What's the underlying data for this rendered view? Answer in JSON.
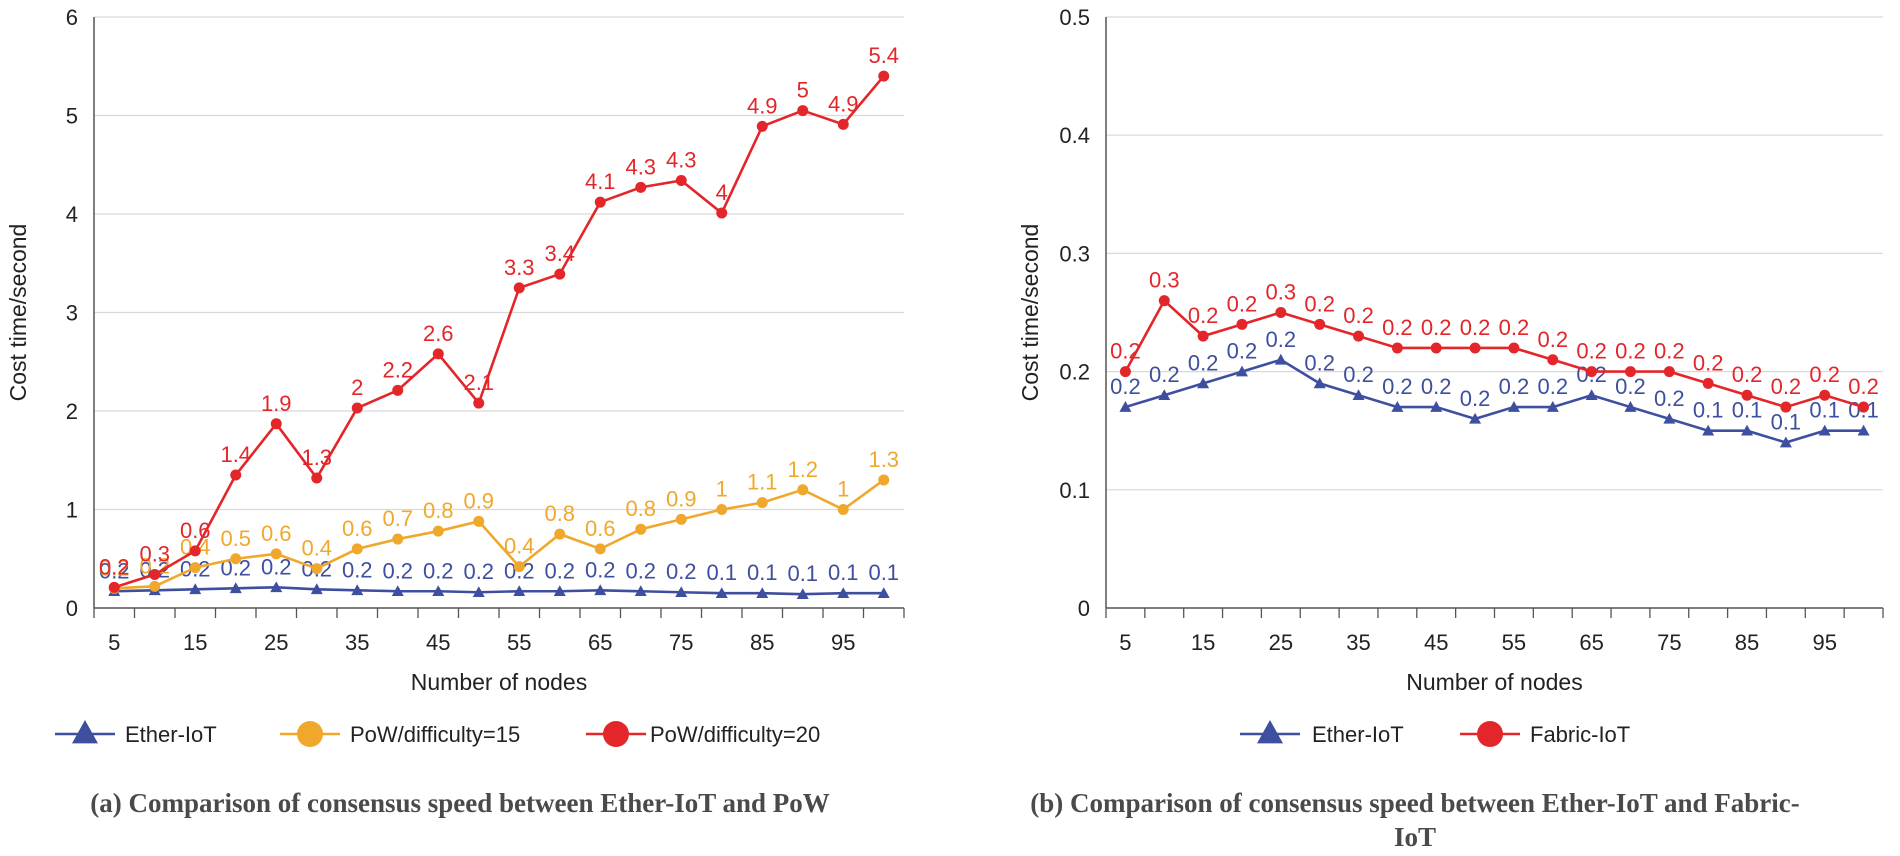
{
  "chart_data": [
    {
      "type": "line",
      "id": "a",
      "caption": "(a) Comparison of consensus speed between Ether-IoT and PoW",
      "xlabel": "Number of nodes",
      "ylabel": "Cost time/second",
      "x": [
        5,
        10,
        15,
        20,
        25,
        30,
        35,
        40,
        45,
        50,
        55,
        60,
        65,
        70,
        75,
        80,
        85,
        90,
        95,
        100
      ],
      "x_tick_labels": [
        "5",
        "15",
        "25",
        "35",
        "45",
        "55",
        "65",
        "75",
        "85",
        "95"
      ],
      "x_tick_values": [
        5,
        15,
        25,
        35,
        45,
        55,
        65,
        75,
        85,
        95
      ],
      "ylim": [
        0,
        6
      ],
      "y_ticks": [
        0,
        1,
        2,
        3,
        4,
        5,
        6
      ],
      "y_tick_labels": [
        "0",
        "1",
        "2",
        "3",
        "4",
        "5",
        "6"
      ],
      "grid": true,
      "legend_position": "bottom",
      "series": [
        {
          "name": "Ether-IoT",
          "color": "#3f4fa0",
          "marker": "triangle",
          "values": [
            0.17,
            0.18,
            0.19,
            0.2,
            0.21,
            0.19,
            0.18,
            0.17,
            0.17,
            0.16,
            0.17,
            0.17,
            0.18,
            0.17,
            0.16,
            0.15,
            0.15,
            0.14,
            0.15,
            0.15
          ],
          "labels": [
            "0.2",
            "0.2",
            "0.2",
            "0.2",
            "0.2",
            "0.2",
            "0.2",
            "0.2",
            "0.2",
            "0.2",
            "0.2",
            "0.2",
            "0.2",
            "0.2",
            "0.2",
            "0.1",
            "0.1",
            "0.1",
            "0.1",
            "0.1"
          ]
        },
        {
          "name": "PoW/difficulty=15",
          "color": "#f0a82c",
          "marker": "circle",
          "values": [
            0.2,
            0.22,
            0.41,
            0.5,
            0.55,
            0.4,
            0.6,
            0.7,
            0.78,
            0.88,
            0.42,
            0.75,
            0.6,
            0.8,
            0.9,
            1.0,
            1.07,
            1.2,
            1.0,
            1.3
          ],
          "labels": [
            "0.2",
            "0.2",
            "0.4",
            "0.5",
            "0.6",
            "0.4",
            "0.6",
            "0.7",
            "0.8",
            "0.9",
            "0.4",
            "0.8",
            "0.6",
            "0.8",
            "0.9",
            "1",
            "1.1",
            "1.2",
            "1",
            "1.3"
          ]
        },
        {
          "name": "PoW/difficulty=20",
          "color": "#e3262a",
          "marker": "circle",
          "values": [
            0.21,
            0.34,
            0.58,
            1.35,
            1.87,
            1.32,
            2.03,
            2.21,
            2.58,
            2.08,
            3.25,
            3.39,
            4.12,
            4.27,
            4.34,
            4.01,
            4.89,
            5.05,
            4.91,
            5.4
          ],
          "labels": [
            "0.2",
            "0.3",
            "0.6",
            "1.4",
            "1.9",
            "1.3",
            "2",
            "2.2",
            "2.6",
            "2.1",
            "3.3",
            "3.4",
            "4.1",
            "4.3",
            "4.3",
            "4",
            "4.9",
            "5",
            "4.9",
            "5.4"
          ]
        }
      ]
    },
    {
      "type": "line",
      "id": "b",
      "caption": "(b) Comparison of consensus speed between Ether-IoT and Fabric-IoT",
      "xlabel": "Number of nodes",
      "ylabel": "Cost time/second",
      "x": [
        5,
        10,
        15,
        20,
        25,
        30,
        35,
        40,
        45,
        50,
        55,
        60,
        65,
        70,
        75,
        80,
        85,
        90,
        95,
        100
      ],
      "x_tick_labels": [
        "5",
        "15",
        "25",
        "35",
        "45",
        "55",
        "65",
        "75",
        "85",
        "95"
      ],
      "x_tick_values": [
        5,
        15,
        25,
        35,
        45,
        55,
        65,
        75,
        85,
        95
      ],
      "ylim": [
        0,
        0.5
      ],
      "y_ticks": [
        0,
        0.1,
        0.2,
        0.3,
        0.4,
        0.5
      ],
      "y_tick_labels": [
        "0",
        "0.1",
        "0.2",
        "0.3",
        "0.4",
        "0.5"
      ],
      "grid": true,
      "legend_position": "bottom",
      "series": [
        {
          "name": "Ether-IoT",
          "color": "#3f4fa0",
          "marker": "triangle",
          "values": [
            0.17,
            0.18,
            0.19,
            0.2,
            0.21,
            0.19,
            0.18,
            0.17,
            0.17,
            0.16,
            0.17,
            0.17,
            0.18,
            0.17,
            0.16,
            0.15,
            0.15,
            0.14,
            0.15,
            0.15
          ],
          "labels": [
            "0.2",
            "0.2",
            "0.2",
            "0.2",
            "0.2",
            "0.2",
            "0.2",
            "0.2",
            "0.2",
            "0.2",
            "0.2",
            "0.2",
            "0.2",
            "0.2",
            "0.2",
            "0.1",
            "0.1",
            "0.1",
            "0.1",
            "0.1"
          ]
        },
        {
          "name": "Fabric-IoT",
          "color": "#e3262a",
          "marker": "circle",
          "values": [
            0.2,
            0.26,
            0.23,
            0.24,
            0.25,
            0.24,
            0.23,
            0.22,
            0.22,
            0.22,
            0.22,
            0.21,
            0.2,
            0.2,
            0.2,
            0.19,
            0.18,
            0.17,
            0.18,
            0.17
          ],
          "labels": [
            "0.2",
            "0.3",
            "0.2",
            "0.2",
            "0.3",
            "0.2",
            "0.2",
            "0.2",
            "0.2",
            "0.2",
            "0.2",
            "0.2",
            "0.2",
            "0.2",
            "0.2",
            "0.2",
            "0.2",
            "0.2",
            "0.2",
            "0.2"
          ]
        }
      ]
    }
  ]
}
